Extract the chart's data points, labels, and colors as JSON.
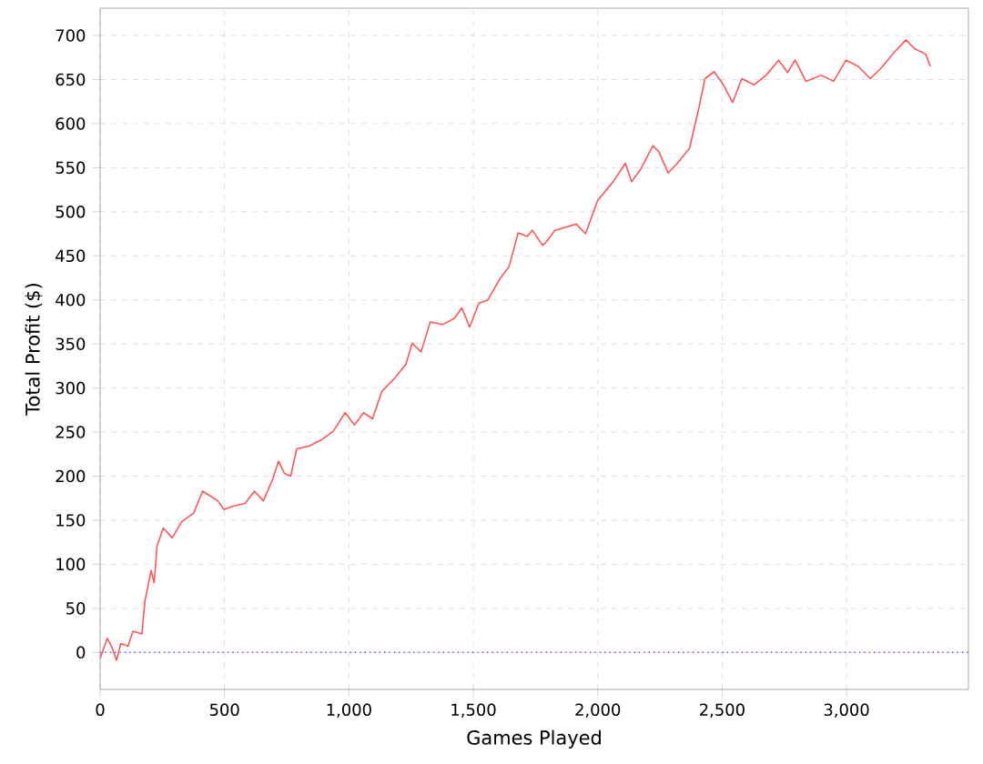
{
  "chart_data": {
    "type": "line",
    "xlabel": "Games Played",
    "ylabel": "Total Profit ($)",
    "xlim": [
      0,
      3490
    ],
    "ylim": [
      -42,
      731
    ],
    "xticks": [
      0,
      500,
      {
        "value": 1000,
        "label": "1,000"
      },
      {
        "value": 1500,
        "label": "1,500"
      },
      {
        "value": 2000,
        "label": "2,000"
      },
      {
        "value": 2500,
        "label": "2,500"
      },
      {
        "value": 3000,
        "label": "3,000"
      }
    ],
    "yticks": [
      0,
      50,
      100,
      150,
      200,
      250,
      300,
      350,
      400,
      450,
      500,
      550,
      600,
      650,
      700
    ],
    "grid": true,
    "marker": "none",
    "line_style": "solid",
    "ref_lines": [
      {
        "axis": "y",
        "value": 0,
        "color": "#5555ff",
        "line_style": "dotted"
      }
    ],
    "x": [
      0,
      29,
      46,
      66,
      83,
      112,
      132,
      168,
      180,
      205,
      217,
      229,
      254,
      290,
      327,
      376,
      412,
      473,
      498,
      534,
      583,
      620,
      656,
      693,
      717,
      741,
      766,
      790,
      839,
      888,
      937,
      985,
      1022,
      1059,
      1095,
      1132,
      1180,
      1229,
      1254,
      1290,
      1327,
      1376,
      1424,
      1454,
      1485,
      1522,
      1559,
      1607,
      1644,
      1680,
      1717,
      1737,
      1778,
      1791,
      1828,
      1914,
      1951,
      2000,
      2062,
      2111,
      2136,
      2172,
      2222,
      2246,
      2283,
      2320,
      2369,
      2406,
      2431,
      2468,
      2505,
      2542,
      2579,
      2628,
      2677,
      2727,
      2764,
      2793,
      2837,
      2899,
      2948,
      2998,
      3047,
      3096,
      3145,
      3195,
      3239,
      3273,
      3318,
      3337
    ],
    "series": [
      {
        "color": "#ff5555",
        "values": [
          -7,
          16,
          7,
          -9,
          10,
          7,
          24,
          21,
          58,
          93,
          79,
          121,
          141,
          130,
          148,
          158,
          183,
          172,
          162,
          166,
          169,
          183,
          172,
          196,
          217,
          203,
          200,
          231,
          234,
          241,
          251,
          272,
          258,
          272,
          265,
          296,
          310,
          327,
          351,
          341,
          375,
          372,
          379,
          391,
          369,
          396,
          400,
          424,
          438,
          476,
          472,
          479,
          462,
          465,
          479,
          486,
          475,
          513,
          534,
          555,
          534,
          548,
          575,
          568,
          544,
          555,
          572,
          617,
          651,
          659,
          644,
          624,
          651,
          644,
          655,
          672,
          658,
          672,
          648,
          655,
          648,
          672,
          665,
          651,
          665,
          682,
          695,
          685,
          679,
          665
        ]
      }
    ]
  }
}
